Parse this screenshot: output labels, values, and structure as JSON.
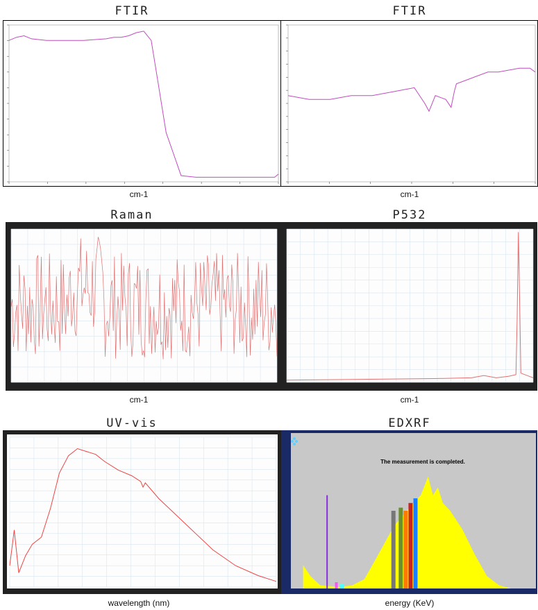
{
  "panels": [
    {
      "id": "ftir1",
      "title": "FTIR",
      "xlabel": "cm-1"
    },
    {
      "id": "ftir2",
      "title": "FTIR",
      "xlabel": "cm-1"
    },
    {
      "id": "raman",
      "title": "Raman",
      "xlabel": "cm-1"
    },
    {
      "id": "p532",
      "title": "P532",
      "xlabel": "cm-1"
    },
    {
      "id": "uvvis",
      "title": "UV-vis",
      "xlabel": "wavelength (nm)"
    },
    {
      "id": "edxrf",
      "title": "EDXRF",
      "xlabel": "energy (KeV)",
      "banner": "The measurement is completed."
    }
  ],
  "chart_data": [
    {
      "type": "line",
      "title": "FTIR",
      "xlabel": "cm-1",
      "line_color": "#c04cc0",
      "x": [
        4000,
        3900,
        3800,
        3700,
        3500,
        3000,
        2700,
        2600,
        2500,
        2400,
        2300,
        2200,
        2100,
        2000,
        1900,
        1700,
        1500,
        1000,
        600,
        450,
        400
      ],
      "y": [
        90,
        92,
        93,
        91,
        90,
        90,
        91,
        92,
        92,
        93,
        95,
        96,
        90,
        60,
        30,
        2,
        1,
        1,
        1,
        1,
        3
      ]
    },
    {
      "type": "line",
      "title": "FTIR",
      "xlabel": "cm-1",
      "line_color": "#c04cc0",
      "x": [
        4000,
        3800,
        3600,
        3400,
        3200,
        3000,
        2800,
        2700,
        2660,
        2600,
        2500,
        2450,
        2420,
        2400,
        2300,
        2200,
        2100,
        2000,
        1800,
        1700,
        1650
      ],
      "y": [
        62,
        61,
        61,
        62,
        62,
        63,
        64,
        60,
        58,
        62,
        61,
        59,
        63,
        65,
        66,
        67,
        68,
        68,
        69,
        69,
        68
      ]
    },
    {
      "type": "line",
      "title": "Raman",
      "xlabel": "cm-1",
      "line_color": "#e07070"
    },
    {
      "type": "line",
      "title": "P532",
      "xlabel": "cm-1",
      "line_color": "#e07070"
    },
    {
      "type": "line",
      "title": "UV-vis",
      "xlabel": "wavelength (nm)",
      "line_color": "#ee4444",
      "x": [
        200,
        210,
        220,
        235,
        250,
        270,
        290,
        310,
        330,
        350,
        370,
        390,
        410,
        440,
        470,
        490,
        495,
        500,
        530,
        570,
        610,
        650,
        700,
        750,
        790
      ],
      "y": [
        0.15,
        0.4,
        0.1,
        0.22,
        0.3,
        0.35,
        0.55,
        0.8,
        0.92,
        0.97,
        0.95,
        0.93,
        0.88,
        0.82,
        0.78,
        0.74,
        0.7,
        0.73,
        0.62,
        0.5,
        0.38,
        0.26,
        0.15,
        0.08,
        0.04
      ]
    },
    {
      "type": "area",
      "title": "EDXRF",
      "xlabel": "energy (KeV)",
      "fill": "#ffff00",
      "background": "#c8c8c8"
    }
  ]
}
